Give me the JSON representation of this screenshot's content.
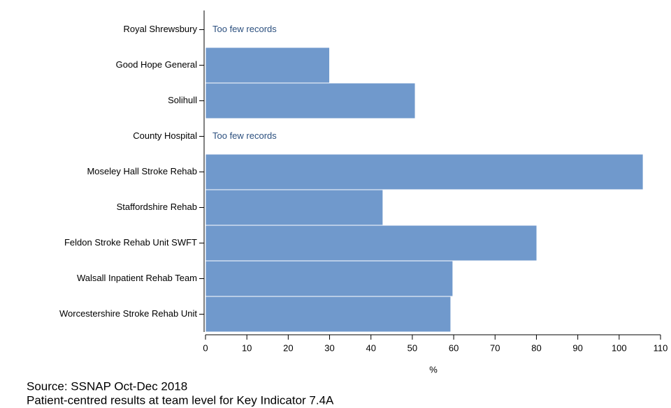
{
  "chart_data": {
    "type": "hbar",
    "categories": [
      "Royal Shrewsbury",
      "Good Hope General",
      "Solihull",
      "County Hospital",
      "Moseley Hall Stroke Rehab",
      "Staffordshire Rehab",
      "Feldon Stroke Rehab Unit SWFT",
      "Walsall Inpatient Rehab Team",
      "Worcestershire Stroke Rehab Unit"
    ],
    "values": [
      null,
      30,
      50.7,
      null,
      105.8,
      42.9,
      80.1,
      59.8,
      59.3
    ],
    "value_labels": [
      "Too few records",
      null,
      null,
      "Too few records",
      null,
      null,
      null,
      null,
      null
    ],
    "color": "#7099cc",
    "xlim": [
      0,
      110
    ],
    "xticks": [
      0,
      10,
      20,
      30,
      40,
      50,
      60,
      70,
      80,
      90,
      100,
      110
    ],
    "xlabel": "%",
    "source": "Source: SSNAP Oct-Dec 2018",
    "note": "Patient-centred results at team level for Key Indicator 7.4A"
  }
}
